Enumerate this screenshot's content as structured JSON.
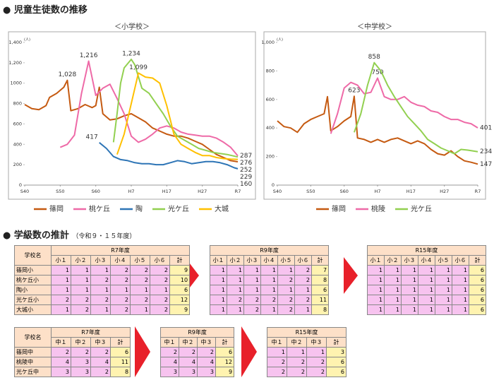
{
  "heading1": "● 児童生徒数の推移",
  "chart_data": [
    {
      "type": "line",
      "title": "＜小学校＞",
      "y_unit": "(人)",
      "xlim": [
        1965,
        2025
      ],
      "ylim": [
        0,
        1400
      ],
      "grid": false,
      "xticks": [
        {
          "value": 1965,
          "label": "S40"
        },
        {
          "value": 1975,
          "label": "S50"
        },
        {
          "value": 1985,
          "label": "S60"
        },
        {
          "value": 1995,
          "label": "H7"
        },
        {
          "value": 2005,
          "label": "H17"
        },
        {
          "value": 2015,
          "label": "H27"
        },
        {
          "value": 2025,
          "label": "R7"
        }
      ],
      "yticks": [
        0,
        200,
        400,
        600,
        800,
        1000,
        {
          "value": 1200,
          "label": "1,200"
        },
        {
          "value": 1400,
          "label": "1,400"
        }
      ],
      "series": [
        {
          "name": "篠岡",
          "color": "#c55a11",
          "x": [
            1965,
            1967,
            1969,
            1971,
            1972,
            1974,
            1976,
            1977,
            1978,
            1980,
            1982,
            1984,
            1985,
            1986,
            1987,
            1989,
            1991,
            1993,
            1995,
            1997,
            1999,
            2001,
            2003,
            2005,
            2007,
            2009,
            2011,
            2013,
            2015,
            2017,
            2019,
            2021,
            2023,
            2025
          ],
          "values": [
            790,
            750,
            740,
            780,
            860,
            900,
            960,
            1028,
            730,
            750,
            790,
            760,
            780,
            960,
            700,
            640,
            650,
            680,
            700,
            660,
            620,
            560,
            530,
            500,
            480,
            480,
            460,
            430,
            400,
            350,
            300,
            270,
            240,
            229
          ],
          "value_labels": [
            null,
            null,
            null,
            null,
            null,
            null,
            null,
            "1,028",
            null,
            null,
            null,
            null,
            null,
            null,
            null,
            null,
            null,
            null,
            null,
            null,
            null,
            null,
            null,
            null,
            null,
            null,
            null,
            null,
            null,
            null,
            null,
            null,
            null,
            "229"
          ]
        },
        {
          "name": "桃ケ丘",
          "color": "#ee6aa7",
          "x": [
            1975,
            1977,
            1979,
            1981,
            1983,
            1985,
            1987,
            1989,
            1991,
            1993,
            1995,
            1997,
            1999,
            2001,
            2003,
            2005,
            2007,
            2009,
            2011,
            2013,
            2015,
            2017,
            2019,
            2021,
            2023,
            2025
          ],
          "values": [
            370,
            400,
            490,
            900,
            1216,
            880,
            950,
            990,
            850,
            700,
            480,
            420,
            450,
            500,
            560,
            580,
            560,
            520,
            500,
            490,
            480,
            480,
            460,
            420,
            370,
            287
          ],
          "value_labels": [
            null,
            null,
            null,
            null,
            "1,216",
            null,
            null,
            null,
            null,
            null,
            null,
            null,
            null,
            null,
            null,
            null,
            null,
            null,
            null,
            null,
            null,
            null,
            null,
            null,
            null,
            "287"
          ]
        },
        {
          "name": "陶",
          "color": "#2e75b6",
          "x": [
            1986,
            1988,
            1990,
            1992,
            1994,
            1996,
            1998,
            2000,
            2002,
            2004,
            2006,
            2008,
            2010,
            2012,
            2014,
            2016,
            2018,
            2020,
            2022,
            2024,
            2025
          ],
          "values": [
            417,
            360,
            280,
            250,
            240,
            220,
            210,
            210,
            200,
            200,
            220,
            240,
            230,
            210,
            220,
            230,
            230,
            220,
            200,
            170,
            160
          ],
          "value_labels": [
            "417",
            null,
            null,
            null,
            null,
            null,
            null,
            null,
            null,
            null,
            null,
            null,
            null,
            null,
            null,
            null,
            null,
            null,
            null,
            null,
            "160"
          ]
        },
        {
          "name": "光ケ丘",
          "color": "#92d050",
          "x": [
            1990,
            1991,
            1992,
            1993,
            1995,
            1996,
            1998,
            2000,
            2002,
            2004,
            2006,
            2008,
            2010,
            2012,
            2014,
            2016,
            2018,
            2020,
            2022,
            2025
          ],
          "values": [
            420,
            700,
            1000,
            1150,
            1234,
            1180,
            950,
            900,
            800,
            700,
            580,
            480,
            440,
            400,
            360,
            340,
            320,
            310,
            300,
            276
          ],
          "value_labels": [
            null,
            null,
            null,
            null,
            "1,234",
            null,
            null,
            null,
            null,
            null,
            null,
            null,
            null,
            null,
            null,
            null,
            null,
            null,
            null,
            "276"
          ]
        },
        {
          "name": "大城",
          "color": "#ffc000",
          "x": [
            1991,
            1993,
            1995,
            1997,
            1999,
            2001,
            2003,
            2005,
            2007,
            2009,
            2011,
            2013,
            2015,
            2017,
            2019,
            2021,
            2023,
            2025
          ],
          "values": [
            300,
            500,
            800,
            1099,
            1060,
            1050,
            1000,
            780,
            500,
            400,
            360,
            320,
            290,
            290,
            270,
            260,
            255,
            252
          ],
          "value_labels": [
            null,
            null,
            null,
            "1,099",
            null,
            null,
            null,
            null,
            null,
            null,
            null,
            null,
            null,
            null,
            null,
            null,
            null,
            "252"
          ]
        }
      ]
    },
    {
      "type": "line",
      "title": "＜中学校＞",
      "y_unit": "(人)",
      "xlim": [
        1965,
        2025
      ],
      "ylim": [
        0,
        1000
      ],
      "grid": false,
      "xticks": [
        {
          "value": 1965,
          "label": "S40"
        },
        {
          "value": 1975,
          "label": "S50"
        },
        {
          "value": 1985,
          "label": "S60"
        },
        {
          "value": 1995,
          "label": "H7"
        },
        {
          "value": 2005,
          "label": "H17"
        },
        {
          "value": 2015,
          "label": "H27"
        },
        {
          "value": 2025,
          "label": "R7"
        }
      ],
      "yticks": [
        0,
        200,
        400,
        600,
        800,
        {
          "value": 1000,
          "label": "1,000"
        }
      ],
      "series": [
        {
          "name": "篠岡",
          "color": "#c55a11",
          "x": [
            1965,
            1967,
            1969,
            1971,
            1973,
            1975,
            1977,
            1979,
            1980,
            1981,
            1983,
            1985,
            1987,
            1988,
            1989,
            1991,
            1993,
            1995,
            1997,
            1999,
            2001,
            2003,
            2005,
            2007,
            2009,
            2011,
            2013,
            2015,
            2017,
            2019,
            2021,
            2023,
            2025
          ],
          "values": [
            450,
            410,
            400,
            370,
            430,
            460,
            480,
            500,
            620,
            380,
            410,
            450,
            480,
            623,
            330,
            320,
            300,
            320,
            300,
            320,
            330,
            310,
            290,
            310,
            290,
            250,
            220,
            210,
            240,
            200,
            170,
            160,
            147
          ],
          "value_labels": [
            null,
            null,
            null,
            null,
            null,
            null,
            null,
            null,
            null,
            null,
            null,
            null,
            null,
            "623",
            null,
            null,
            null,
            null,
            null,
            null,
            null,
            null,
            null,
            null,
            null,
            null,
            null,
            null,
            null,
            null,
            null,
            null,
            "147"
          ]
        },
        {
          "name": "桃陵",
          "color": "#ee6aa7",
          "x": [
            1981,
            1983,
            1985,
            1987,
            1989,
            1991,
            1993,
            1995,
            1997,
            1999,
            2001,
            2003,
            2005,
            2007,
            2009,
            2011,
            2013,
            2015,
            2017,
            2019,
            2021,
            2023,
            2025
          ],
          "values": [
            360,
            500,
            680,
            720,
            700,
            640,
            650,
            750,
            620,
            600,
            600,
            620,
            580,
            560,
            550,
            520,
            510,
            480,
            460,
            460,
            440,
            430,
            401
          ],
          "value_labels": [
            null,
            null,
            null,
            null,
            null,
            null,
            null,
            "750",
            null,
            null,
            null,
            null,
            null,
            null,
            null,
            null,
            null,
            null,
            null,
            null,
            null,
            null,
            "401"
          ]
        },
        {
          "name": "光ケ丘",
          "color": "#92d050",
          "x": [
            1988,
            1990,
            1992,
            1994,
            1996,
            1998,
            2000,
            2002,
            2004,
            2006,
            2008,
            2010,
            2012,
            2014,
            2016,
            2018,
            2020,
            2022,
            2025
          ],
          "values": [
            370,
            500,
            700,
            858,
            800,
            700,
            620,
            550,
            480,
            430,
            380,
            320,
            290,
            260,
            240,
            220,
            250,
            245,
            234
          ],
          "value_labels": [
            null,
            null,
            null,
            "858",
            null,
            null,
            null,
            null,
            null,
            null,
            null,
            null,
            null,
            null,
            null,
            null,
            null,
            null,
            "234"
          ]
        }
      ]
    }
  ],
  "heading2": {
    "title": "● 学級数の推計",
    "note": "（令和９・１５年度）"
  },
  "elementary": {
    "label_header": "学校名",
    "schools": [
      "篠岡小",
      "桃ケ丘小",
      "陶小",
      "光ケ丘小",
      "大城小"
    ],
    "tables": [
      {
        "title": "R7年度",
        "columns": [
          "小１",
          "小２",
          "小３",
          "小４",
          "小５",
          "小６",
          "計"
        ],
        "rows": [
          [
            1,
            1,
            1,
            2,
            2,
            2,
            9
          ],
          [
            1,
            1,
            2,
            2,
            2,
            2,
            10
          ],
          [
            1,
            1,
            1,
            1,
            1,
            1,
            6
          ],
          [
            2,
            2,
            2,
            2,
            2,
            2,
            12
          ],
          [
            1,
            2,
            1,
            2,
            1,
            2,
            9
          ]
        ]
      },
      {
        "title": "R9年度",
        "columns": [
          "小１",
          "小２",
          "小３",
          "小４",
          "小５",
          "小６",
          "計"
        ],
        "rows": [
          [
            1,
            1,
            1,
            1,
            1,
            2,
            7
          ],
          [
            1,
            1,
            1,
            1,
            2,
            2,
            8
          ],
          [
            1,
            1,
            1,
            1,
            1,
            1,
            6
          ],
          [
            1,
            2,
            2,
            2,
            2,
            2,
            11
          ],
          [
            1,
            1,
            2,
            1,
            2,
            1,
            8
          ]
        ]
      },
      {
        "title": "R15年度",
        "columns": [
          "小１",
          "小２",
          "小３",
          "小４",
          "小５",
          "小６",
          "計"
        ],
        "rows": [
          [
            1,
            1,
            1,
            1,
            1,
            1,
            6
          ],
          [
            1,
            1,
            1,
            1,
            1,
            1,
            6
          ],
          [
            1,
            1,
            1,
            1,
            1,
            1,
            6
          ],
          [
            1,
            1,
            1,
            1,
            1,
            1,
            6
          ],
          [
            1,
            1,
            1,
            1,
            1,
            1,
            6
          ]
        ]
      }
    ]
  },
  "junior": {
    "label_header": "学校名",
    "schools": [
      "篠岡中",
      "桃陵中",
      "光ケ丘中"
    ],
    "tables": [
      {
        "title": "R7年度",
        "columns": [
          "中１",
          "中２",
          "中３",
          "計"
        ],
        "rows": [
          [
            2,
            2,
            2,
            6
          ],
          [
            4,
            3,
            4,
            11
          ],
          [
            3,
            3,
            2,
            8
          ]
        ]
      },
      {
        "title": "R9年度",
        "columns": [
          "中１",
          "中２",
          "中３",
          "計"
        ],
        "rows": [
          [
            2,
            2,
            2,
            6
          ],
          [
            4,
            4,
            4,
            12
          ],
          [
            3,
            3,
            3,
            9
          ]
        ]
      },
      {
        "title": "R15年度",
        "columns": [
          "中１",
          "中２",
          "中３",
          "計"
        ],
        "rows": [
          [
            1,
            1,
            1,
            3
          ],
          [
            2,
            2,
            2,
            6
          ],
          [
            2,
            2,
            2,
            6
          ]
        ]
      }
    ]
  }
}
